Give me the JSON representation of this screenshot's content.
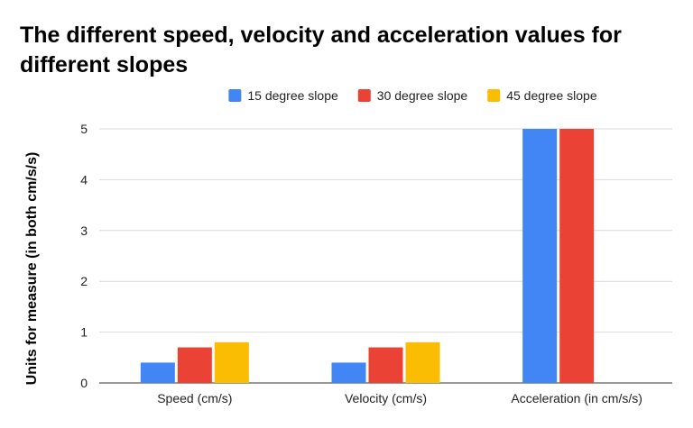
{
  "chart_data": {
    "type": "bar",
    "title_lines": [
      "The different speed, velocity and acceleration values for",
      "different slopes"
    ],
    "xlabel": "",
    "ylabel": "Units for measure (in both cm/s/s)",
    "categories": [
      "Speed (cm/s)",
      "Velocity (cm/s)",
      "Acceleration (in cm/s/s)"
    ],
    "series": [
      {
        "name": "15 degree slope",
        "color": "#4285f4",
        "values": [
          0.4,
          0.4,
          5
        ]
      },
      {
        "name": "30 degree slope",
        "color": "#ea4335",
        "values": [
          0.7,
          0.7,
          5
        ]
      },
      {
        "name": "45 degree slope",
        "color": "#fbbc04",
        "values": [
          0.8,
          0.8,
          0
        ]
      }
    ],
    "ylim": [
      0,
      5
    ],
    "yticks": [
      0,
      1,
      2,
      3,
      4,
      5
    ],
    "grid": true,
    "legend_position": "top"
  }
}
